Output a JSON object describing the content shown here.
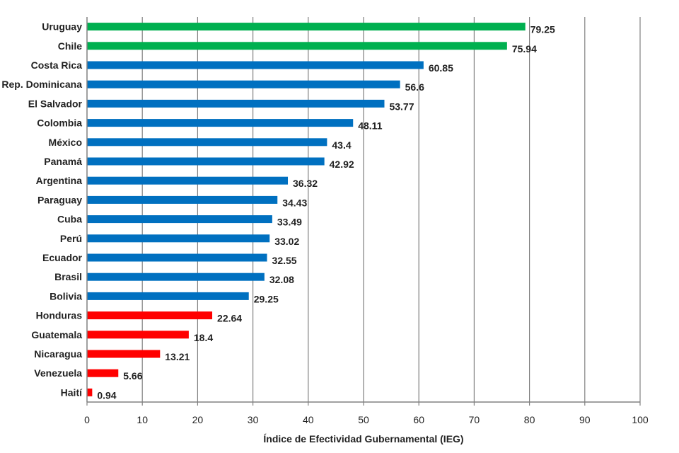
{
  "chart_data": {
    "type": "bar",
    "orientation": "horizontal",
    "categories": [
      "Uruguay",
      "Chile",
      "Costa Rica",
      "Rep. Dominicana",
      "El Salvador",
      "Colombia",
      "México",
      "Panamá",
      "Argentina",
      "Paraguay",
      "Cuba",
      "Perú",
      "Ecuador",
      "Brasil",
      "Bolivia",
      "Honduras",
      "Guatemala",
      "Nicaragua",
      "Venezuela",
      "Haití"
    ],
    "values": [
      79.25,
      75.94,
      60.85,
      56.6,
      53.77,
      48.11,
      43.4,
      42.92,
      36.32,
      34.43,
      33.49,
      33.02,
      32.55,
      32.08,
      29.25,
      22.64,
      18.4,
      13.21,
      5.66,
      0.94
    ],
    "value_labels": [
      "79.25",
      "75.94",
      "60.85",
      "56.6",
      "53.77",
      "48.11",
      "43.4",
      "42.92",
      "36.32",
      "34.43",
      "33.49",
      "33.02",
      "32.55",
      "32.08",
      "29.25",
      "22.64",
      "18.4",
      "13.21",
      "5.66",
      "0.94"
    ],
    "bar_colors": [
      "#00b050",
      "#00b050",
      "#0070c0",
      "#0070c0",
      "#0070c0",
      "#0070c0",
      "#0070c0",
      "#0070c0",
      "#0070c0",
      "#0070c0",
      "#0070c0",
      "#0070c0",
      "#0070c0",
      "#0070c0",
      "#0070c0",
      "#ff0000",
      "#ff0000",
      "#ff0000",
      "#ff0000",
      "#ff0000"
    ],
    "xlabel": "Índice de Efectividad Gubernamental (IEG)",
    "ylabel": "",
    "xlim": [
      0,
      100
    ],
    "x_ticks": [
      "0",
      "10",
      "20",
      "30",
      "40",
      "50",
      "60",
      "70",
      "80",
      "90",
      "100"
    ],
    "grid": "vertical",
    "gridline_color": "#808080"
  }
}
